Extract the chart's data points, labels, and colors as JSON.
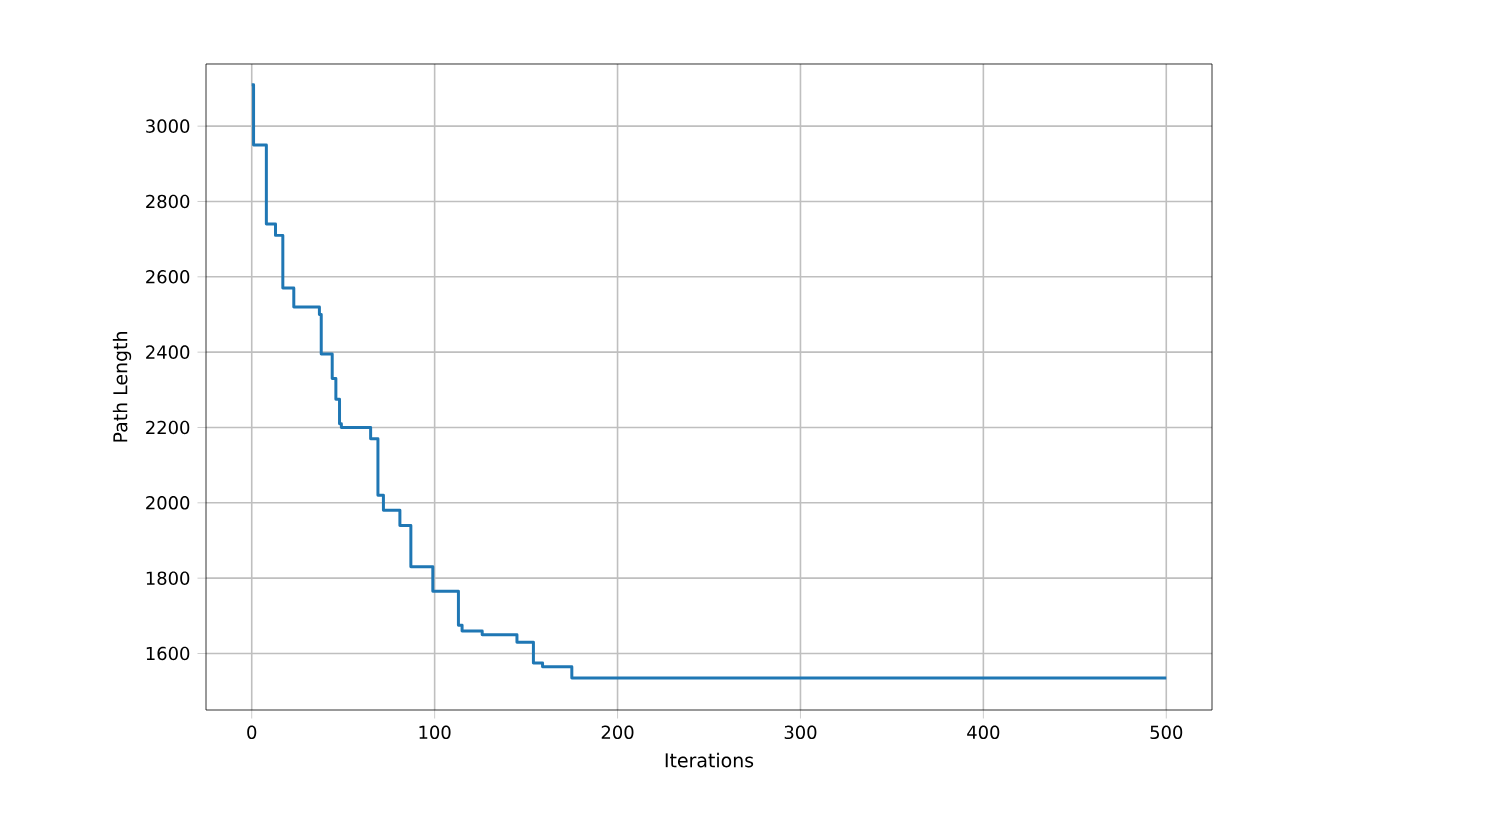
{
  "chart_data": {
    "type": "step",
    "xlabel": "Iterations",
    "ylabel": "Path Length",
    "x": [
      0,
      1,
      8,
      13,
      17,
      23,
      37,
      38,
      44,
      46,
      48,
      49,
      65,
      69,
      72,
      81,
      87,
      99,
      113,
      115,
      126,
      145,
      154,
      159,
      175,
      500
    ],
    "series": [
      {
        "color": "#1f77b4",
        "values": [
          3110,
          2950,
          2740,
          2710,
          2570,
          2520,
          2500,
          2395,
          2330,
          2275,
          2210,
          2200,
          2170,
          2020,
          1980,
          1940,
          1830,
          1765,
          1675,
          1660,
          1650,
          1630,
          1575,
          1565,
          1535,
          1535
        ]
      }
    ],
    "xlim": [
      -25,
      525
    ],
    "ylim": [
      1450,
      3165
    ],
    "xticks": [
      0,
      100,
      200,
      300,
      400,
      500
    ],
    "yticks": [
      1600,
      1800,
      2000,
      2200,
      2400,
      2600,
      2800,
      3000
    ],
    "grid": true,
    "line_style": "solid",
    "marker": "none"
  }
}
